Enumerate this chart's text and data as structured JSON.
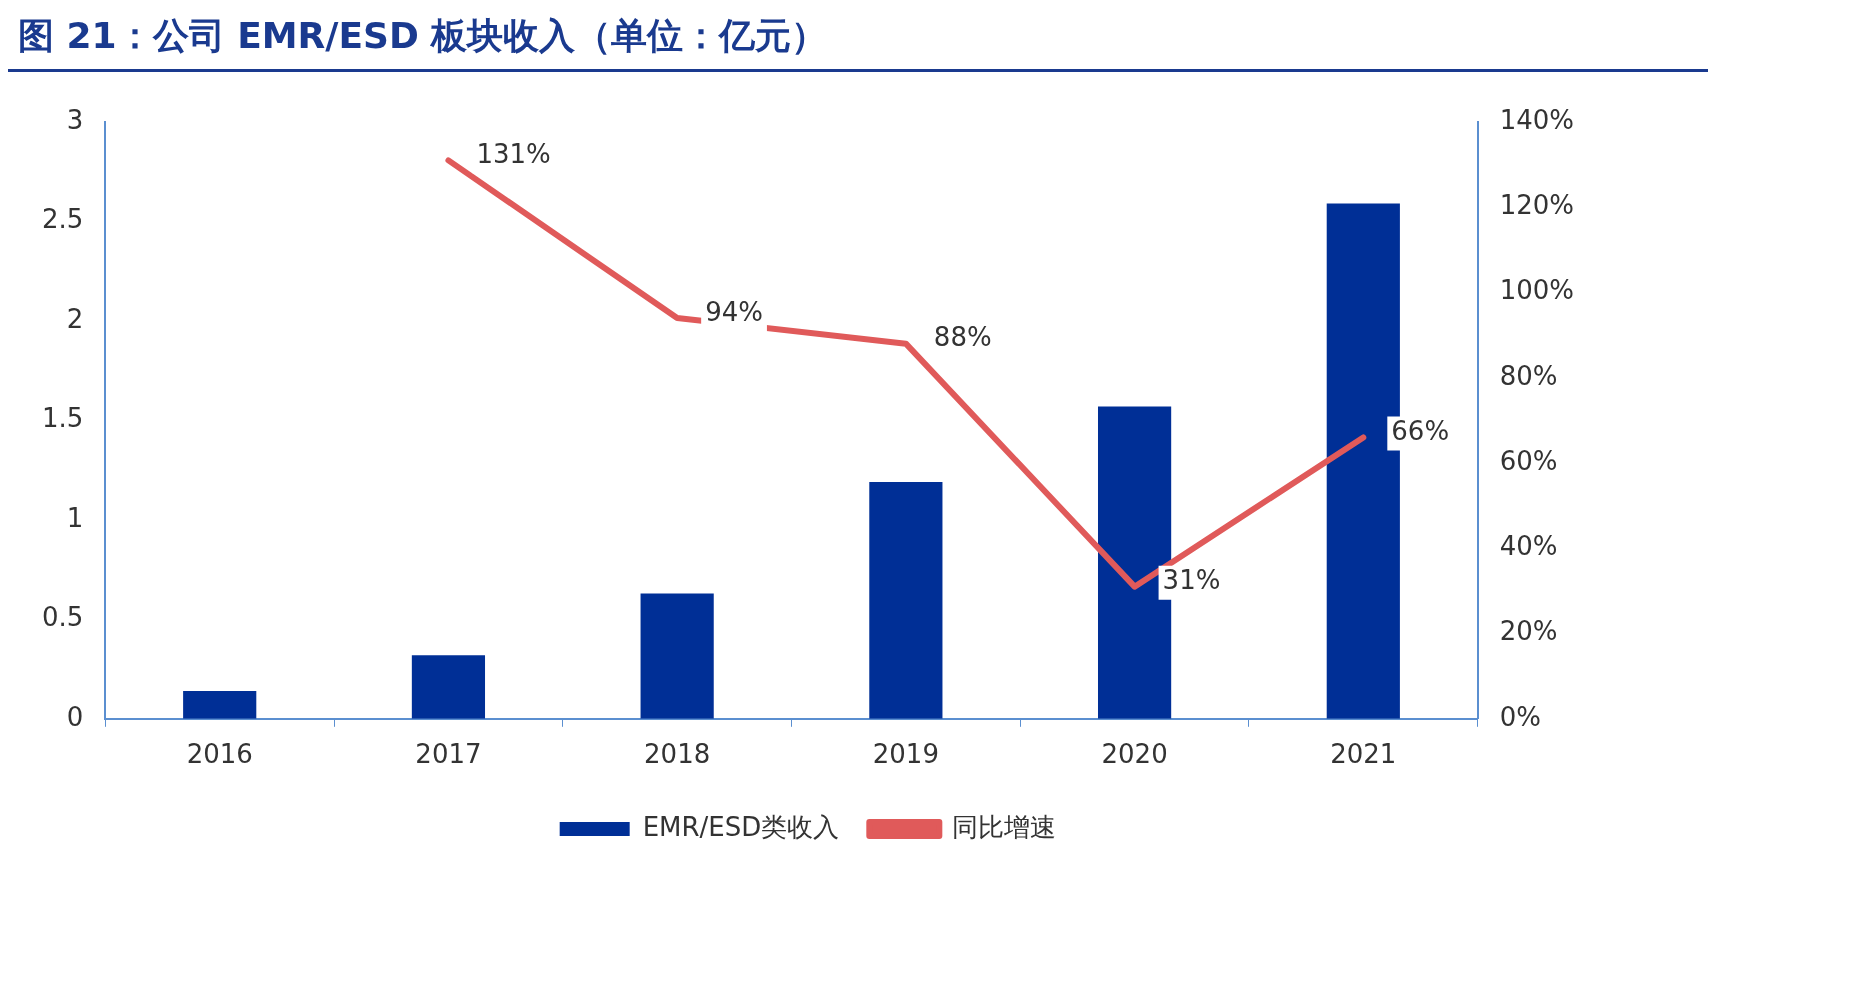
{
  "chart_data": {
    "type": "bar",
    "title": "图 21：公司 EMR/ESD 板块收入（单位：亿元）",
    "categories": [
      "2016",
      "2017",
      "2018",
      "2019",
      "2020",
      "2021"
    ],
    "series": [
      {
        "name": "EMR/ESD类收入",
        "color": "#002f96",
        "values": [
          0.14,
          0.32,
          0.63,
          1.19,
          1.57,
          2.59
        ]
      },
      {
        "name": "同比增速",
        "type": "line",
        "axis": "y2",
        "color": "#e05a5a",
        "values": [
          null,
          131,
          94,
          88,
          31,
          66
        ],
        "value_labels": [
          null,
          "131%",
          "94%",
          "88%",
          "31%",
          "66%"
        ]
      }
    ],
    "ylim": [
      0,
      3
    ],
    "yticks": [
      0,
      0.5,
      1,
      1.5,
      2,
      2.5,
      3
    ],
    "y2lim": [
      0,
      140
    ],
    "y2ticks": [
      {
        "value": 0,
        "label": "0%"
      },
      {
        "value": 20,
        "label": "20%"
      },
      {
        "value": 40,
        "label": "40%"
      },
      {
        "value": 60,
        "label": "60%"
      },
      {
        "value": 80,
        "label": "80%"
      },
      {
        "value": 100,
        "label": "100%"
      },
      {
        "value": 120,
        "label": "120%"
      },
      {
        "value": 140,
        "label": "140%"
      }
    ],
    "grid": false,
    "legend": "bottom",
    "marker": "none",
    "line_style": "solid"
  }
}
